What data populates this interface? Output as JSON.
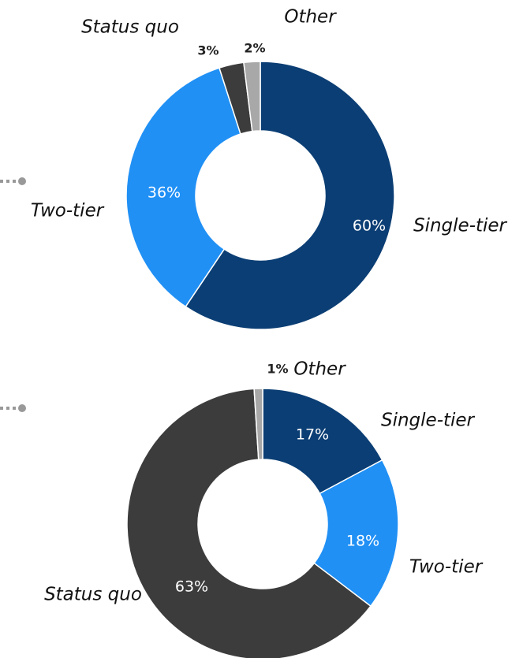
{
  "chart_data": [
    {
      "type": "donut",
      "categories": [
        "Single-tier",
        "Two-tier",
        "Status quo",
        "Other"
      ],
      "values": [
        60,
        36,
        3,
        2
      ],
      "value_labels": [
        "60%",
        "36%",
        "3%",
        "2%"
      ],
      "colors": [
        "#0b3e74",
        "#2090f5",
        "#3c3c3c",
        "#a8a8a8"
      ]
    },
    {
      "type": "donut",
      "categories": [
        "Single-tier",
        "Two-tier",
        "Status quo",
        "Other"
      ],
      "values": [
        17,
        18,
        63,
        1
      ],
      "value_labels": [
        "17%",
        "18%",
        "63%",
        "1%"
      ],
      "colors": [
        "#0b3e74",
        "#2090f5",
        "#3c3c3c",
        "#a8a8a8"
      ]
    }
  ]
}
